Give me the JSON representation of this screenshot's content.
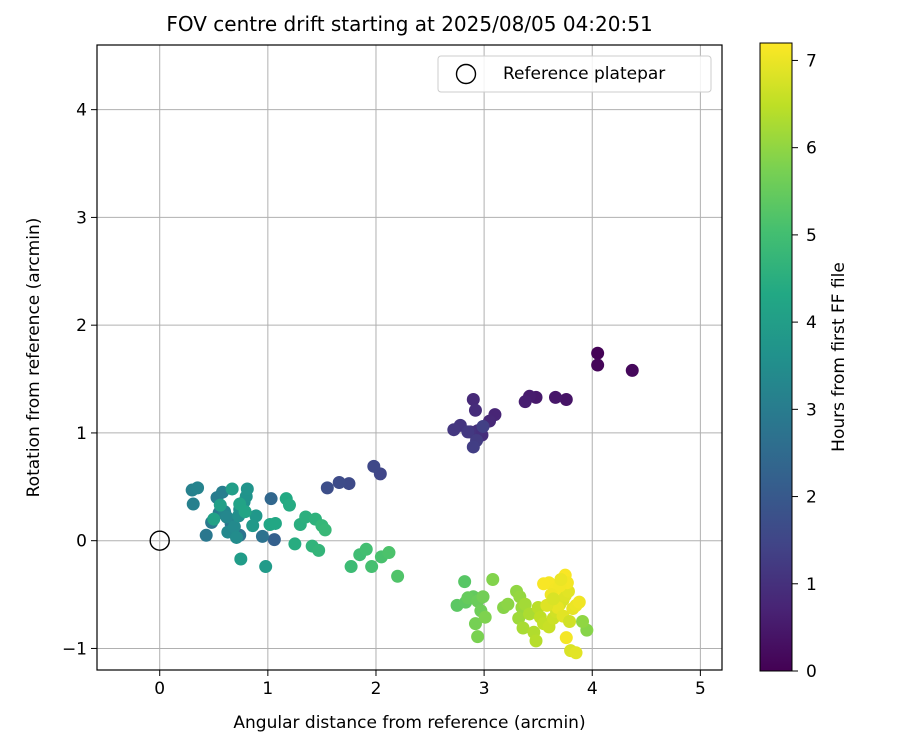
{
  "chart_data": {
    "type": "scatter",
    "title": "FOV centre drift starting at 2025/08/05 04:20:51",
    "xlabel": "Angular distance from reference (arcmin)",
    "ylabel": "Rotation from reference (arcmin)",
    "xlim": [
      -0.58,
      5.2
    ],
    "ylim": [
      -1.2,
      4.6
    ],
    "xticks": [
      0,
      1,
      2,
      3,
      4,
      5
    ],
    "yticks": [
      -1,
      0,
      1,
      2,
      3,
      4
    ],
    "xtick_labels": [
      "0",
      "1",
      "2",
      "3",
      "4",
      "5"
    ],
    "ytick_labels": [
      "−1",
      "0",
      "1",
      "2",
      "3",
      "4"
    ],
    "grid": true,
    "legend": {
      "placement": "upper right",
      "entries": [
        "Reference platepar"
      ]
    },
    "reference_point": {
      "x": 0,
      "y": 0,
      "marker": "open-circle"
    },
    "colormap": "viridis",
    "colorbar": {
      "label": "Hours from first FF file",
      "range": [
        0,
        7.2
      ],
      "ticks": [
        0,
        1,
        2,
        3,
        4,
        5,
        6,
        7
      ],
      "tick_labels": [
        "0",
        "1",
        "2",
        "3",
        "4",
        "5",
        "6",
        "7"
      ]
    },
    "series": [
      {
        "points": [
          [
            4.05,
            1.74,
            0.05
          ],
          [
            4.05,
            1.63,
            0.1
          ],
          [
            4.37,
            1.58,
            0.15
          ],
          [
            3.76,
            1.31,
            0.4
          ],
          [
            3.66,
            1.33,
            0.45
          ],
          [
            3.48,
            1.33,
            0.5
          ],
          [
            3.42,
            1.34,
            0.55
          ],
          [
            3.38,
            1.29,
            0.6
          ],
          [
            3.1,
            1.17,
            0.75
          ],
          [
            3.05,
            1.11,
            0.8
          ],
          [
            2.9,
            1.31,
            0.85
          ],
          [
            2.92,
            1.21,
            0.9
          ],
          [
            2.98,
            0.98,
            0.95
          ],
          [
            2.94,
            1.02,
            1.0
          ],
          [
            2.87,
            1.01,
            1.05
          ],
          [
            2.78,
            1.07,
            1.1
          ],
          [
            2.72,
            1.03,
            1.15
          ],
          [
            2.85,
            1.01,
            1.2
          ],
          [
            2.93,
            0.93,
            1.25
          ],
          [
            2.9,
            0.87,
            1.3
          ],
          [
            2.99,
            1.06,
            1.35
          ],
          [
            2.04,
            0.62,
            1.5
          ],
          [
            1.98,
            0.69,
            1.55
          ],
          [
            1.75,
            0.53,
            1.6
          ],
          [
            1.66,
            0.54,
            1.65
          ],
          [
            1.55,
            0.49,
            1.7
          ],
          [
            1.06,
            0.01,
            2.2
          ],
          [
            1.03,
            0.39,
            2.4
          ],
          [
            0.95,
            0.04,
            2.7
          ],
          [
            0.74,
            0.05,
            2.75
          ],
          [
            0.66,
            0.16,
            2.8
          ],
          [
            0.43,
            0.05,
            2.85
          ],
          [
            0.48,
            0.17,
            2.9
          ],
          [
            0.55,
            0.26,
            2.95
          ],
          [
            0.53,
            0.4,
            3.0
          ],
          [
            0.58,
            0.45,
            3.05
          ],
          [
            0.31,
            0.34,
            3.1
          ],
          [
            0.3,
            0.47,
            3.15
          ],
          [
            0.35,
            0.49,
            3.2
          ],
          [
            0.6,
            0.27,
            3.25
          ],
          [
            0.62,
            0.22,
            3.3
          ],
          [
            0.63,
            0.08,
            3.35
          ],
          [
            0.69,
            0.13,
            3.4
          ],
          [
            0.71,
            0.03,
            3.45
          ],
          [
            0.74,
            0.29,
            3.5
          ],
          [
            0.73,
            0.23,
            3.55
          ],
          [
            0.78,
            0.36,
            3.6
          ],
          [
            0.8,
            0.41,
            3.65
          ],
          [
            0.81,
            0.48,
            3.7
          ],
          [
            0.89,
            0.23,
            3.8
          ],
          [
            0.86,
            0.14,
            3.85
          ],
          [
            0.98,
            -0.24,
            3.9
          ],
          [
            0.75,
            -0.17,
            3.95
          ],
          [
            0.67,
            0.48,
            4.0
          ],
          [
            0.56,
            0.33,
            4.05
          ],
          [
            0.5,
            0.2,
            4.1
          ],
          [
            0.74,
            0.34,
            4.15
          ],
          [
            0.79,
            0.27,
            4.2
          ],
          [
            1.02,
            0.15,
            4.25
          ],
          [
            1.07,
            0.16,
            4.3
          ],
          [
            1.17,
            0.39,
            4.35
          ],
          [
            1.2,
            0.33,
            4.4
          ],
          [
            1.25,
            -0.03,
            4.45
          ],
          [
            1.3,
            0.15,
            4.5
          ],
          [
            1.35,
            0.22,
            4.55
          ],
          [
            1.44,
            0.2,
            4.6
          ],
          [
            1.41,
            -0.05,
            4.65
          ],
          [
            1.47,
            -0.09,
            4.7
          ],
          [
            1.5,
            0.14,
            4.75
          ],
          [
            1.53,
            0.1,
            4.8
          ],
          [
            1.77,
            -0.24,
            4.9
          ],
          [
            1.85,
            -0.13,
            4.95
          ],
          [
            1.91,
            -0.08,
            5.0
          ],
          [
            1.96,
            -0.24,
            5.05
          ],
          [
            2.05,
            -0.15,
            5.1
          ],
          [
            2.12,
            -0.11,
            5.15
          ],
          [
            2.2,
            -0.33,
            5.2
          ],
          [
            2.82,
            -0.38,
            5.3
          ],
          [
            2.75,
            -0.6,
            5.35
          ],
          [
            2.83,
            -0.57,
            5.4
          ],
          [
            2.9,
            -0.52,
            5.45
          ],
          [
            2.85,
            -0.53,
            5.5
          ],
          [
            2.94,
            -0.56,
            5.55
          ],
          [
            2.97,
            -0.65,
            5.6
          ],
          [
            2.99,
            -0.52,
            5.65
          ],
          [
            2.92,
            -0.77,
            5.7
          ],
          [
            2.94,
            -0.89,
            5.75
          ],
          [
            3.01,
            -0.71,
            5.8
          ],
          [
            3.08,
            -0.36,
            5.85
          ],
          [
            3.18,
            -0.62,
            5.9
          ],
          [
            3.22,
            -0.59,
            5.95
          ],
          [
            3.3,
            -0.47,
            6.0
          ],
          [
            3.33,
            -0.52,
            6.05
          ],
          [
            3.35,
            -0.62,
            6.1
          ],
          [
            3.32,
            -0.72,
            6.15
          ],
          [
            3.38,
            -0.59,
            6.2
          ],
          [
            3.36,
            -0.81,
            6.25
          ],
          [
            3.42,
            -0.68,
            6.3
          ],
          [
            3.46,
            -0.85,
            6.35
          ],
          [
            3.48,
            -0.93,
            6.4
          ],
          [
            3.5,
            -0.62,
            6.45
          ],
          [
            3.52,
            -0.71,
            6.5
          ],
          [
            3.55,
            -0.77,
            6.55
          ],
          [
            3.6,
            -0.8,
            6.6
          ],
          [
            3.64,
            -0.72,
            6.65
          ],
          [
            3.67,
            -0.66,
            6.7
          ],
          [
            3.7,
            -0.59,
            6.75
          ],
          [
            3.73,
            -0.55,
            6.8
          ],
          [
            3.75,
            -0.51,
            6.85
          ],
          [
            3.78,
            -0.47,
            6.9
          ],
          [
            3.82,
            -0.63,
            6.95
          ],
          [
            3.85,
            -0.6,
            7.0
          ],
          [
            3.88,
            -0.57,
            7.05
          ],
          [
            3.95,
            -0.83,
            5.9
          ],
          [
            3.91,
            -0.75,
            6.0
          ],
          [
            3.8,
            -1.02,
            6.8
          ],
          [
            3.85,
            -1.04,
            6.9
          ],
          [
            3.76,
            -0.9,
            7.1
          ],
          [
            3.75,
            -0.32,
            7.15
          ],
          [
            3.77,
            -0.39,
            7.1
          ],
          [
            3.6,
            -0.39,
            7.12
          ],
          [
            3.55,
            -0.4,
            7.14
          ],
          [
            3.66,
            -0.45,
            7.1
          ],
          [
            3.7,
            -0.42,
            7.08
          ],
          [
            3.62,
            -0.5,
            7.05
          ],
          [
            3.68,
            -0.62,
            6.95
          ],
          [
            3.73,
            -0.7,
            6.9
          ],
          [
            3.58,
            -0.6,
            6.85
          ],
          [
            3.64,
            -0.54,
            6.8
          ],
          [
            3.71,
            -0.36,
            7.0
          ],
          [
            3.79,
            -0.75,
            6.7
          ]
        ]
      }
    ]
  }
}
